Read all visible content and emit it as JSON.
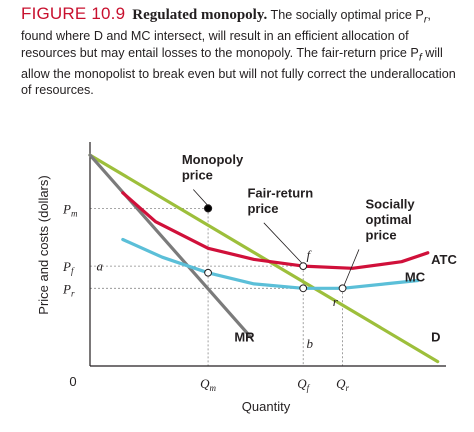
{
  "caption": {
    "figure_number": "FIGURE 10.9",
    "figure_title": "Regulated monopoly.",
    "text_1": "The socially optimal price P",
    "sub_r": "r",
    "text_2": ", found where D and MC intersect, will result in an efficient allocation of resources but may entail losses to the monopoly. The fair-return price P",
    "sub_f": "f",
    "text_3": " will allow the monopolist to break even but will not fully correct the underallocation of resources."
  },
  "chart_data": {
    "type": "line",
    "xlabel": "Quantity",
    "ylabel": "Price and costs (dollars)",
    "origin_label": "0",
    "xlim": [
      0,
      100
    ],
    "ylim": [
      0,
      100
    ],
    "grid": false,
    "y_ticks": [
      {
        "label": "P",
        "sub": "m",
        "value": 71
      },
      {
        "label": "P",
        "sub": "f",
        "value": 45
      },
      {
        "label": "P",
        "sub": "r",
        "value": 35
      }
    ],
    "x_ticks": [
      {
        "label": "Q",
        "sub": "m",
        "value": 36
      },
      {
        "label": "Q",
        "sub": "f",
        "value": 65
      },
      {
        "label": "Q",
        "sub": "r",
        "value": 77
      }
    ],
    "series": [
      {
        "name": "D",
        "color": "#9dbf3b",
        "points": [
          [
            0,
            95
          ],
          [
            106,
            2
          ]
        ]
      },
      {
        "name": "MR",
        "color": "#7b7b7b",
        "points": [
          [
            0,
            95
          ],
          [
            49,
            13
          ]
        ]
      },
      {
        "name": "ATC",
        "color": "#d0103a",
        "points": [
          [
            10,
            78
          ],
          [
            20,
            65
          ],
          [
            36,
            53
          ],
          [
            50,
            48
          ],
          [
            65,
            45
          ],
          [
            80,
            44
          ],
          [
            95,
            47
          ],
          [
            103,
            51
          ]
        ]
      },
      {
        "name": "MC",
        "color": "#5bbfd8",
        "points": [
          [
            10,
            57
          ],
          [
            22,
            49
          ],
          [
            36,
            42
          ],
          [
            50,
            37
          ],
          [
            65,
            35
          ],
          [
            77,
            35
          ],
          [
            90,
            37
          ],
          [
            100,
            38.5
          ]
        ]
      }
    ],
    "annotations": [
      {
        "text": "Monopoly",
        "x": 28,
        "y": 91,
        "bold": true
      },
      {
        "text": "price",
        "x": 28,
        "y": 84,
        "bold": true
      },
      {
        "text": "Fair-return",
        "x": 48,
        "y": 76,
        "bold": true
      },
      {
        "text": "price",
        "x": 48,
        "y": 69,
        "bold": true
      },
      {
        "text": "Socially",
        "x": 84,
        "y": 71,
        "bold": true
      },
      {
        "text": "optimal",
        "x": 84,
        "y": 64,
        "bold": true
      },
      {
        "text": "price",
        "x": 84,
        "y": 57,
        "bold": true
      },
      {
        "text": "f",
        "x": 66,
        "y": 48,
        "italic": true
      },
      {
        "text": "a",
        "x": 2,
        "y": 43,
        "italic": true
      },
      {
        "text": "r",
        "x": 74,
        "y": 27,
        "italic": true
      },
      {
        "text": "b",
        "x": 66,
        "y": 8,
        "italic": true
      },
      {
        "text": "MR",
        "x": 44,
        "y": 11,
        "bold": true
      },
      {
        "text": "D",
        "x": 104,
        "y": 11,
        "bold": true
      },
      {
        "text": "ATC",
        "x": 104,
        "y": 46,
        "bold": true
      },
      {
        "text": "MC",
        "x": 96,
        "y": 38,
        "bold": true
      }
    ],
    "points": [
      {
        "name": "monopoly-point",
        "x": 36,
        "y": 71,
        "filled": true
      },
      {
        "name": "ATC-MC-point",
        "x": 36,
        "y": 42,
        "filled": false
      },
      {
        "name": "fair-return-point",
        "x": 65,
        "y": 45,
        "filled": false
      },
      {
        "name": "MC-at-Qf-point",
        "x": 65,
        "y": 35,
        "filled": false
      },
      {
        "name": "socially-optimal-point",
        "x": 77,
        "y": 35,
        "filled": false
      }
    ],
    "guides": [
      {
        "x": 36,
        "y": 71
      },
      {
        "x": 65,
        "y": 45
      },
      {
        "x": 77,
        "y": 35
      }
    ],
    "colors": {
      "figure_number": "#c8102e",
      "demand": "#9dbf3b",
      "mr": "#7b7b7b",
      "atc": "#d0103a",
      "mc": "#5bbfd8",
      "guide": "#8a8a8a",
      "axis": "#231f20"
    }
  }
}
